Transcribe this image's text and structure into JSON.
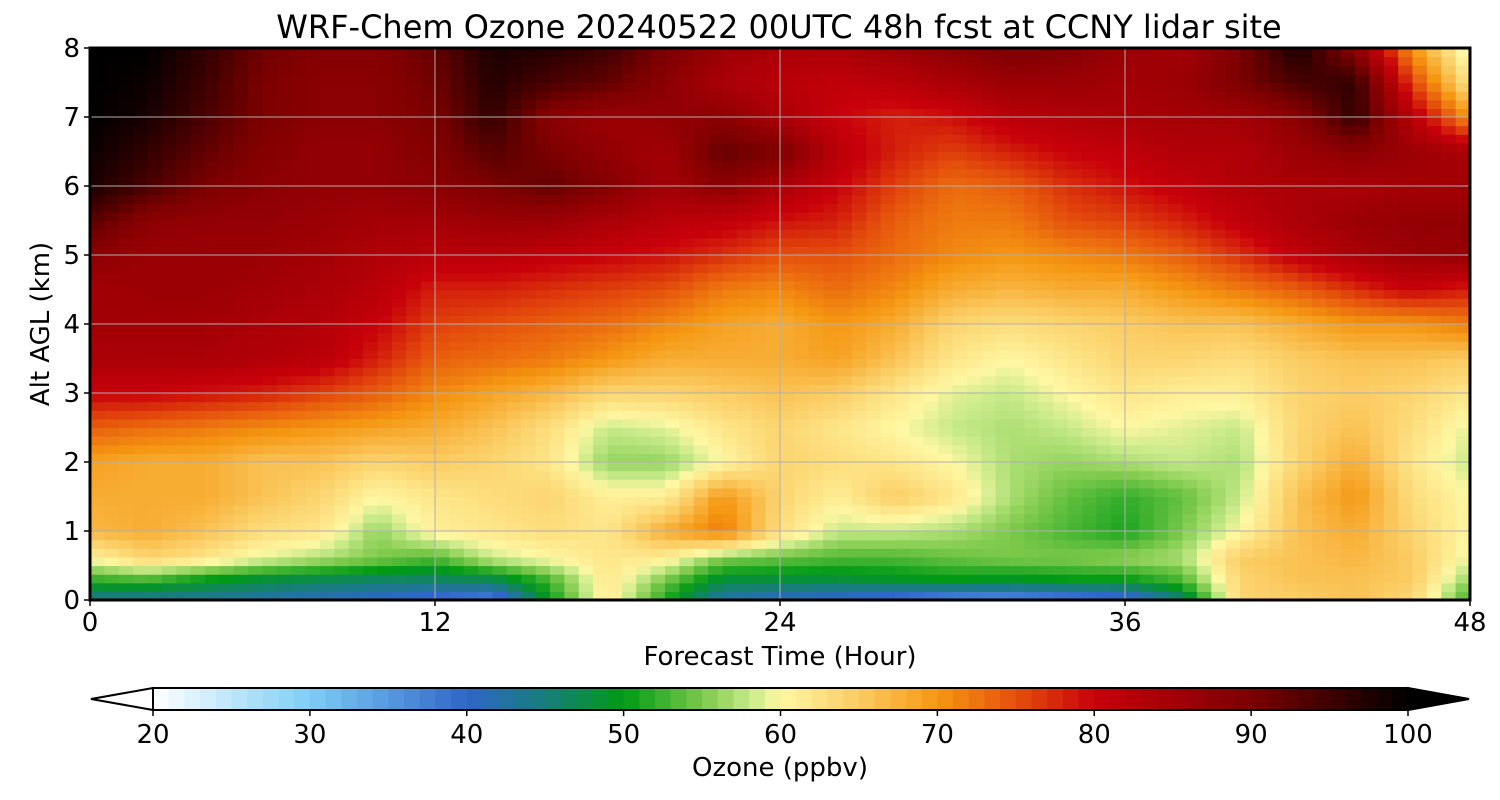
{
  "chart_data": {
    "type": "heatmap",
    "title": "WRF-Chem Ozone  20240522 00UTC 48h fcst at CCNY lidar site",
    "xlabel": "Forecast Time (Hour)",
    "ylabel": "Alt AGL (km)",
    "xlim": [
      0,
      48
    ],
    "ylim": [
      0,
      8
    ],
    "x_ticks": [
      "0",
      "12",
      "24",
      "36",
      "48"
    ],
    "y_ticks": [
      "0",
      "1",
      "2",
      "3",
      "4",
      "5",
      "6",
      "7",
      "8"
    ],
    "grid": true,
    "colorbar": {
      "label": "Ozone  (ppbv)",
      "range": [
        20,
        100
      ],
      "ticks": [
        "20",
        "30",
        "40",
        "50",
        "60",
        "70",
        "80",
        "90",
        "100"
      ],
      "extend": "both",
      "orientation": "horizontal",
      "placement": "bottom",
      "colors": [
        {
          "value": 20,
          "color": "#ffffff"
        },
        {
          "value": 30,
          "color": "#7ecdf5"
        },
        {
          "value": 40,
          "color": "#2f66c8"
        },
        {
          "value": 45,
          "color": "#177e7a"
        },
        {
          "value": 50,
          "color": "#009a15"
        },
        {
          "value": 55,
          "color": "#7cc94a"
        },
        {
          "value": 58,
          "color": "#c5e988"
        },
        {
          "value": 60,
          "color": "#fff7a3"
        },
        {
          "value": 65,
          "color": "#fbcc63"
        },
        {
          "value": 70,
          "color": "#f59712"
        },
        {
          "value": 75,
          "color": "#e5500c"
        },
        {
          "value": 80,
          "color": "#c8000a"
        },
        {
          "value": 90,
          "color": "#7c0000"
        },
        {
          "value": 100,
          "color": "#000000"
        }
      ]
    },
    "x": [
      0,
      2,
      4,
      6,
      8,
      10,
      12,
      14,
      16,
      18,
      20,
      22,
      24,
      26,
      28,
      30,
      32,
      34,
      36,
      38,
      40,
      42,
      44,
      46,
      48
    ],
    "y": [
      0,
      0.1,
      0.3,
      0.6,
      1,
      1.5,
      2,
      2.5,
      3,
      3.5,
      4,
      4.5,
      5,
      5.5,
      6,
      6.5,
      7,
      7.5,
      8
    ],
    "z": [
      [
        44,
        44,
        43,
        42,
        41,
        40,
        38,
        36,
        50,
        62,
        52,
        42,
        40,
        40,
        38,
        35,
        34,
        36,
        38,
        45,
        64,
        65,
        66,
        64,
        53
      ],
      [
        46,
        46,
        45,
        44,
        43,
        42,
        41,
        40,
        51,
        62,
        52,
        44,
        43,
        42,
        41,
        40,
        40,
        41,
        42,
        48,
        64,
        65,
        66,
        64,
        53
      ],
      [
        52,
        53,
        50,
        48,
        47,
        46,
        46,
        47,
        53,
        62,
        55,
        48,
        48,
        48,
        49,
        50,
        49,
        50,
        50,
        53,
        64,
        66,
        66,
        65,
        56
      ],
      [
        60,
        64,
        62,
        59,
        57,
        55,
        53,
        58,
        60,
        62,
        61,
        55,
        54,
        53,
        53,
        54,
        55,
        55,
        56,
        57,
        65,
        66,
        67,
        65,
        59
      ],
      [
        67,
        68,
        66,
        63,
        62,
        56,
        61,
        62,
        63,
        62,
        68,
        72,
        63,
        58,
        58,
        57,
        55,
        53,
        51,
        55,
        60,
        66,
        68,
        64,
        60
      ],
      [
        68,
        68,
        68,
        66,
        64,
        60,
        62,
        63,
        64,
        61,
        61,
        70,
        64,
        61,
        65,
        62,
        57,
        54,
        52,
        54,
        58,
        66,
        70,
        63,
        60
      ],
      [
        69,
        68,
        68,
        66,
        66,
        64,
        65,
        64,
        62,
        56,
        56,
        60,
        64,
        63,
        62,
        60,
        57,
        56,
        57,
        58,
        57,
        64,
        68,
        62,
        58
      ],
      [
        74,
        73,
        72,
        71,
        70,
        69,
        68,
        66,
        63,
        58,
        59,
        62,
        64,
        62,
        60,
        58,
        57,
        58,
        60,
        59,
        58,
        64,
        66,
        63,
        59
      ],
      [
        80,
        80,
        79,
        78,
        76,
        74,
        71,
        69,
        67,
        64,
        64,
        65,
        66,
        65,
        62,
        59,
        58,
        60,
        62,
        61,
        61,
        64,
        65,
        64,
        62
      ],
      [
        84,
        84,
        84,
        83,
        82,
        78,
        74,
        73,
        72,
        70,
        68,
        68,
        68,
        69,
        66,
        62,
        60,
        62,
        64,
        64,
        63,
        65,
        66,
        66,
        65
      ],
      [
        85,
        85,
        85,
        84,
        83,
        80,
        76,
        75,
        74,
        73,
        71,
        69,
        68,
        70,
        68,
        64,
        63,
        64,
        65,
        66,
        66,
        68,
        70,
        70,
        72
      ],
      [
        85,
        86,
        86,
        85,
        84,
        82,
        78,
        78,
        77,
        76,
        75,
        72,
        71,
        73,
        71,
        68,
        67,
        68,
        68,
        70,
        72,
        74,
        77,
        80,
        78
      ],
      [
        88,
        86,
        86,
        86,
        85,
        83,
        82,
        82,
        81,
        80,
        79,
        77,
        75,
        75,
        73,
        71,
        70,
        71,
        72,
        74,
        77,
        81,
        84,
        86,
        87
      ],
      [
        93,
        88,
        87,
        87,
        86,
        85,
        85,
        86,
        86,
        84,
        82,
        81,
        79,
        78,
        74,
        72,
        72,
        75,
        76,
        78,
        81,
        84,
        86,
        87,
        87
      ],
      [
        98,
        94,
        90,
        88,
        87,
        87,
        88,
        90,
        92,
        89,
        85,
        88,
        84,
        80,
        76,
        73,
        74,
        77,
        79,
        81,
        83,
        84,
        84,
        85,
        85
      ],
      [
        99,
        96,
        92,
        89,
        87,
        87,
        89,
        93,
        90,
        87,
        85,
        92,
        90,
        82,
        78,
        76,
        78,
        80,
        81,
        83,
        83,
        86,
        88,
        86,
        84
      ],
      [
        100,
        98,
        94,
        90,
        88,
        88,
        90,
        96,
        88,
        86,
        87,
        88,
        84,
        80,
        78,
        79,
        82,
        83,
        84,
        85,
        85,
        88,
        96,
        82,
        70
      ],
      [
        100,
        99,
        95,
        90,
        88,
        88,
        91,
        97,
        94,
        92,
        88,
        84,
        82,
        81,
        82,
        84,
        86,
        86,
        85,
        86,
        90,
        94,
        96,
        76,
        62
      ],
      [
        100,
        100,
        96,
        91,
        89,
        89,
        92,
        98,
        97,
        95,
        90,
        86,
        84,
        84,
        86,
        88,
        90,
        89,
        86,
        85,
        90,
        98,
        88,
        70,
        58
      ]
    ]
  }
}
